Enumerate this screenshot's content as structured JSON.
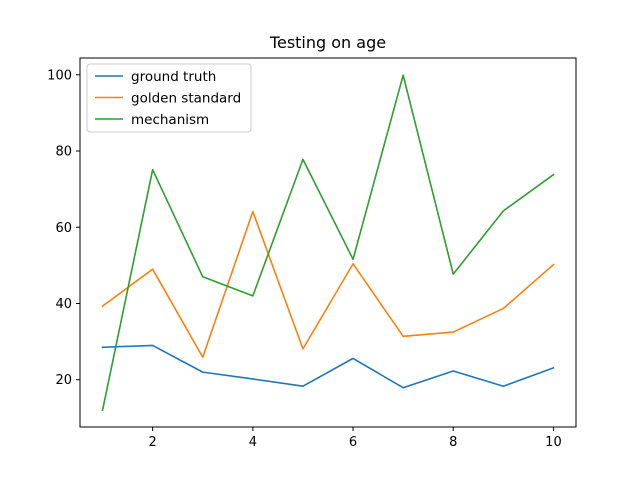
{
  "chart_data": {
    "type": "line",
    "title": "Testing on age",
    "xlabel": "",
    "ylabel": "",
    "x": [
      1,
      2,
      3,
      4,
      5,
      6,
      7,
      8,
      9,
      10
    ],
    "xlim": [
      0.55,
      10.45
    ],
    "ylim": [
      7.6,
      104.4
    ],
    "xticks": [
      2,
      4,
      6,
      8,
      10
    ],
    "yticks": [
      20,
      40,
      60,
      80,
      100
    ],
    "grid": false,
    "legend_position": "top-left",
    "series": [
      {
        "name": "ground truth",
        "color": "#1f77b4",
        "values": [
          28.5,
          29,
          22,
          20.2,
          18.3,
          25.6,
          17.9,
          22.3,
          18.3,
          23.1
        ]
      },
      {
        "name": "golden standard",
        "color": "#ff7f0e",
        "values": [
          39.3,
          49,
          25.9,
          64.1,
          28.1,
          50.4,
          31.4,
          32.5,
          38.7,
          50.2
        ]
      },
      {
        "name": "mechanism",
        "color": "#2ca02c",
        "values": [
          12,
          75.1,
          47,
          42,
          77.8,
          51.6,
          99.9,
          47.7,
          64.3,
          73.8
        ]
      }
    ]
  }
}
